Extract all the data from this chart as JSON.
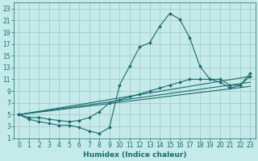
{
  "xlabel": "Humidex (Indice chaleur)",
  "bg_color": "#c5eaea",
  "grid_color": "#a8cccc",
  "line_color": "#1a6b6b",
  "xlim": [
    -0.5,
    23.5
  ],
  "ylim": [
    1,
    24
  ],
  "xticks": [
    0,
    1,
    2,
    3,
    4,
    5,
    6,
    7,
    8,
    9,
    10,
    11,
    12,
    13,
    14,
    15,
    16,
    17,
    18,
    19,
    20,
    21,
    22,
    23
  ],
  "yticks": [
    1,
    3,
    5,
    7,
    9,
    11,
    13,
    15,
    17,
    19,
    21,
    23
  ],
  "curve1_x": [
    0,
    1,
    2,
    3,
    4,
    5,
    6,
    7,
    8,
    9,
    10,
    11,
    12,
    13,
    14,
    15,
    16,
    17,
    18,
    19,
    20,
    21,
    22,
    23
  ],
  "curve1_y": [
    5,
    4.2,
    3.8,
    3.5,
    3.2,
    3.2,
    2.8,
    2.2,
    1.8,
    2.8,
    10.0,
    13.2,
    16.5,
    17.2,
    20.0,
    22.2,
    21.2,
    18.0,
    13.2,
    11.0,
    10.5,
    9.5,
    10.0,
    11.5
  ],
  "curve2_x": [
    0,
    1,
    2,
    3,
    4,
    5,
    6,
    7,
    8,
    9,
    10,
    11,
    12,
    13,
    14,
    15,
    16,
    17,
    18,
    19,
    20,
    21,
    22,
    23
  ],
  "curve2_y": [
    5,
    4.5,
    4.5,
    4.2,
    4.0,
    3.8,
    4.0,
    4.5,
    5.5,
    7.0,
    7.5,
    8.0,
    8.5,
    9.0,
    9.5,
    10.0,
    10.5,
    11.0,
    11.0,
    11.0,
    11.0,
    10.0,
    10.0,
    12.0
  ],
  "curve3_x": [
    0,
    23
  ],
  "curve3_y": [
    5,
    11.5
  ],
  "curve4_x": [
    0,
    23
  ],
  "curve4_y": [
    5,
    10.5
  ],
  "curve5_x": [
    0,
    23
  ],
  "curve5_y": [
    5,
    9.8
  ],
  "tick_fontsize": 5.5,
  "axis_fontsize": 6.5
}
